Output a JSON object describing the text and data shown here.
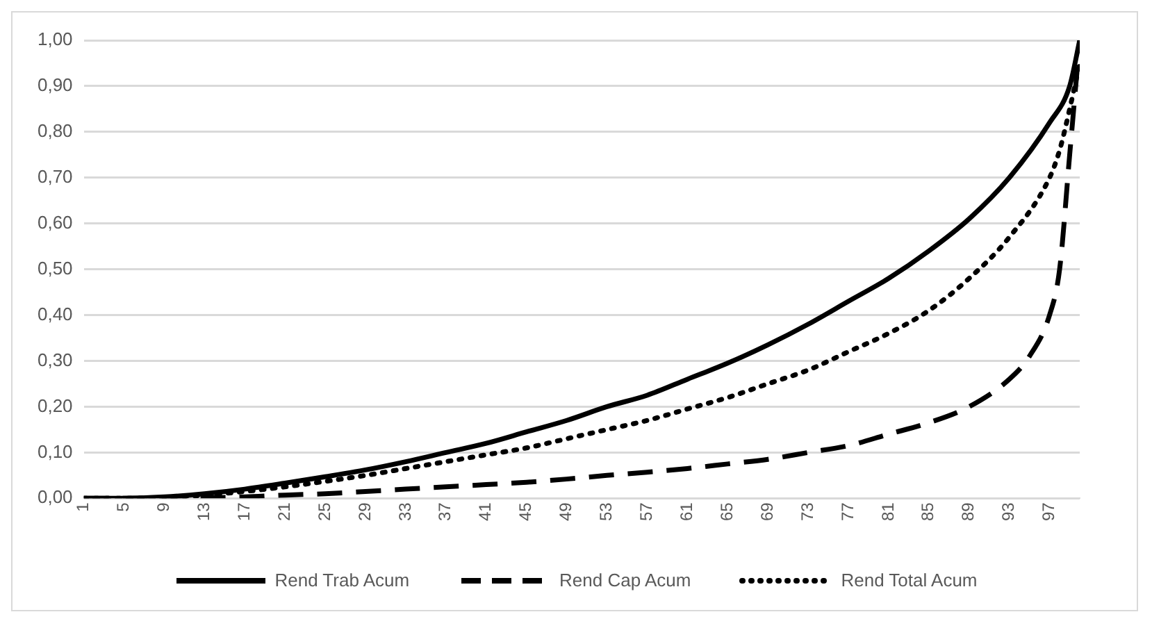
{
  "chart_data": {
    "type": "line",
    "xlim": [
      1,
      100
    ],
    "xticks": [
      1,
      5,
      9,
      13,
      17,
      21,
      25,
      29,
      33,
      37,
      41,
      45,
      49,
      53,
      57,
      61,
      65,
      69,
      73,
      77,
      81,
      85,
      89,
      93,
      97
    ],
    "ylim": [
      0,
      1
    ],
    "yticks": [
      {
        "value": 0,
        "label": "0,00"
      },
      {
        "value": 0.1,
        "label": "0,10"
      },
      {
        "value": 0.2,
        "label": "0,20"
      },
      {
        "value": 0.3,
        "label": "0,30"
      },
      {
        "value": 0.4,
        "label": "0,40"
      },
      {
        "value": 0.5,
        "label": "0,50"
      },
      {
        "value": 0.6,
        "label": "0,60"
      },
      {
        "value": 0.7,
        "label": "0,70"
      },
      {
        "value": 0.8,
        "label": "0,80"
      },
      {
        "value": 0.9,
        "label": "0,90"
      },
      {
        "value": 1,
        "label": "1,00"
      }
    ],
    "grid": "y",
    "legend": "bottom",
    "marker": "none",
    "series": [
      {
        "name": "Rend Trab Acum",
        "color": "#000000",
        "line_style": "solid",
        "x": [
          1,
          5,
          9,
          13,
          17,
          21,
          25,
          29,
          33,
          37,
          41,
          45,
          49,
          53,
          57,
          61,
          65,
          69,
          73,
          77,
          81,
          85,
          89,
          93,
          97,
          99,
          100
        ],
        "values": [
          0,
          0,
          0.003,
          0.01,
          0.02,
          0.033,
          0.047,
          0.062,
          0.08,
          0.1,
          0.12,
          0.145,
          0.17,
          0.2,
          0.225,
          0.26,
          0.295,
          0.335,
          0.38,
          0.43,
          0.48,
          0.54,
          0.61,
          0.7,
          0.82,
          0.9,
          1
        ]
      },
      {
        "name": "Rend Cap Acum",
        "color": "#000000",
        "line_style": "dashed",
        "x": [
          1,
          5,
          9,
          13,
          17,
          21,
          25,
          29,
          33,
          37,
          41,
          45,
          49,
          53,
          57,
          61,
          65,
          69,
          73,
          77,
          81,
          85,
          89,
          93,
          95,
          97,
          98,
          99,
          100
        ],
        "values": [
          0,
          0,
          0,
          0.001,
          0.003,
          0.007,
          0.01,
          0.015,
          0.02,
          0.025,
          0.03,
          0.035,
          0.042,
          0.05,
          0.057,
          0.065,
          0.075,
          0.085,
          0.1,
          0.115,
          0.14,
          0.165,
          0.2,
          0.26,
          0.31,
          0.4,
          0.5,
          0.75,
          1
        ]
      },
      {
        "name": "Rend Total Acum",
        "color": "#000000",
        "line_style": "dotted",
        "x": [
          1,
          5,
          9,
          13,
          17,
          21,
          25,
          29,
          33,
          37,
          41,
          45,
          49,
          53,
          57,
          61,
          65,
          69,
          73,
          77,
          81,
          85,
          89,
          93,
          97,
          98,
          99,
          100
        ],
        "values": [
          0,
          0,
          0.002,
          0.007,
          0.015,
          0.025,
          0.037,
          0.05,
          0.065,
          0.08,
          0.095,
          0.11,
          0.13,
          0.15,
          0.17,
          0.195,
          0.22,
          0.25,
          0.28,
          0.32,
          0.36,
          0.41,
          0.48,
          0.57,
          0.7,
          0.76,
          0.85,
          0.95
        ]
      }
    ]
  }
}
